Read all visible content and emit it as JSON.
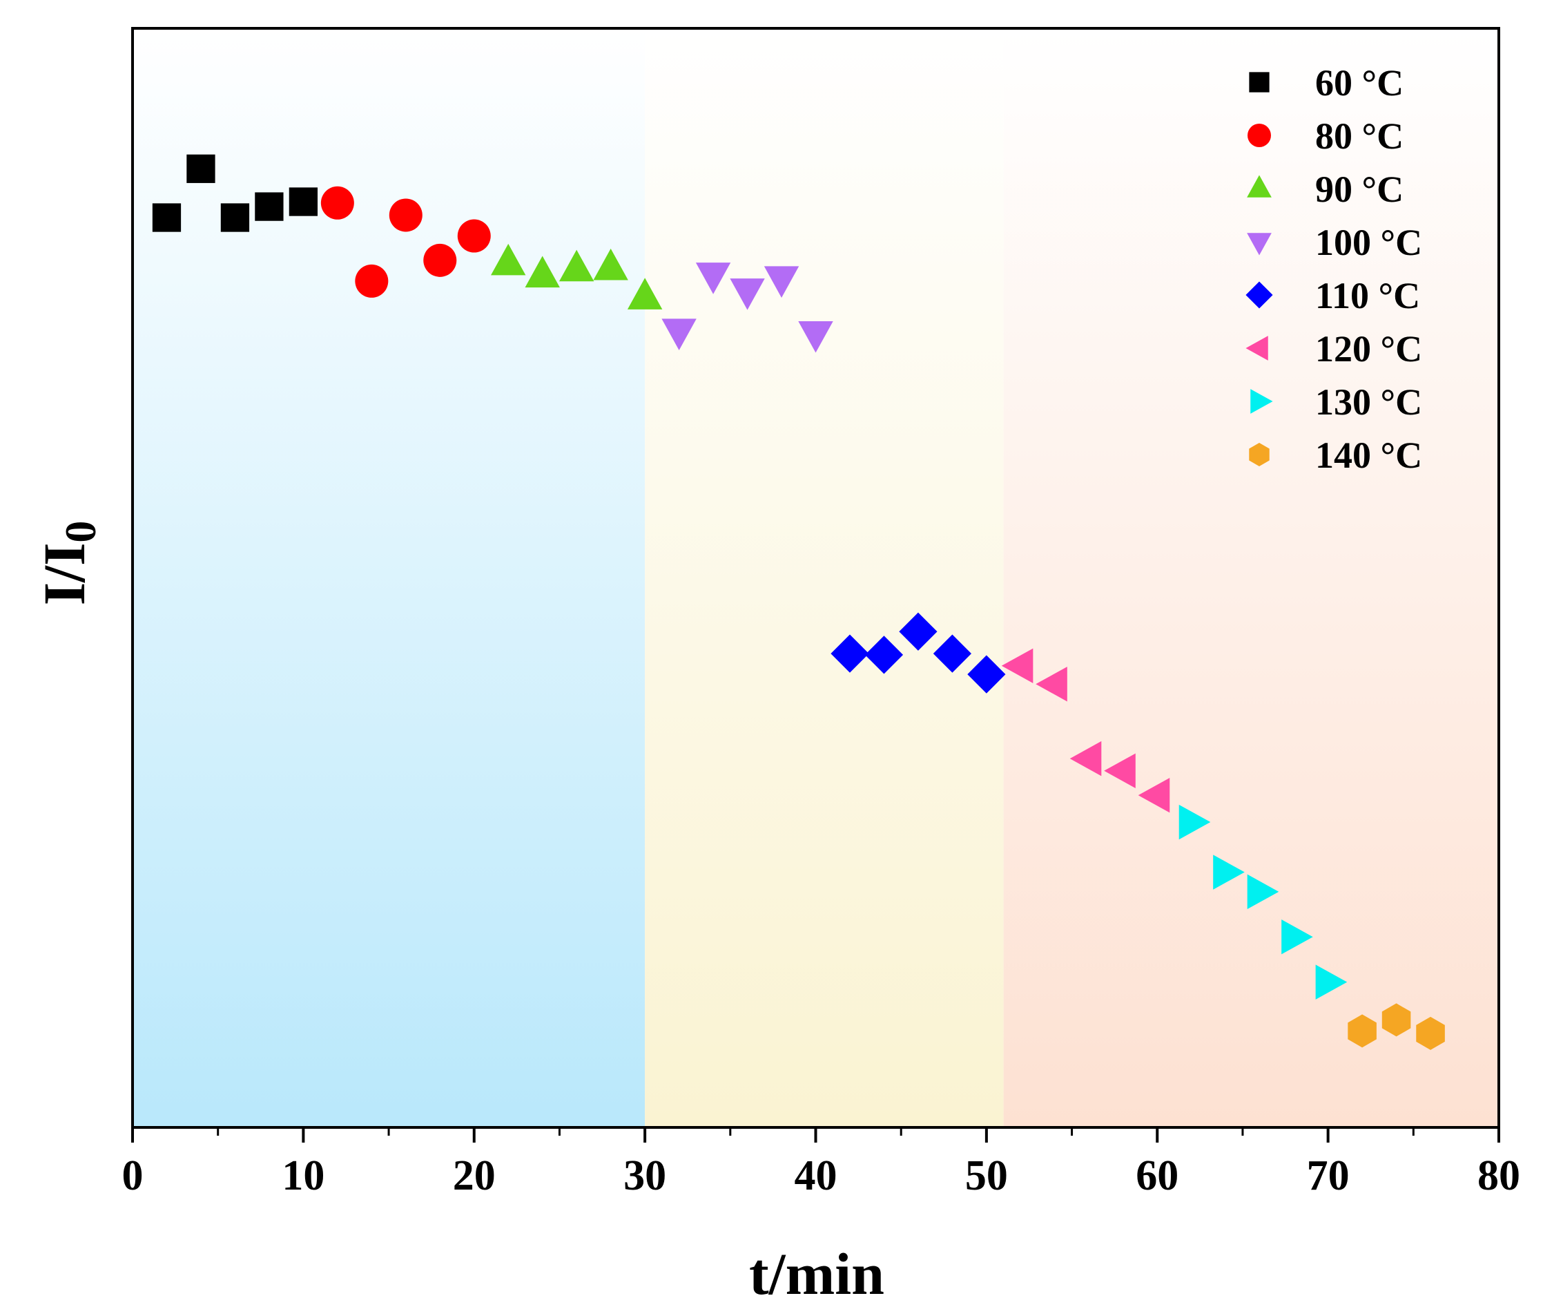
{
  "chart_data": {
    "type": "scatter",
    "title": "",
    "xlabel": "t/min",
    "ylabel": "I/I",
    "ylabel_subscript": "0",
    "xlim": [
      0,
      80
    ],
    "ylim": [
      0.18,
      1.08
    ],
    "xticks": [
      0,
      10,
      20,
      30,
      40,
      50,
      60,
      70,
      80
    ],
    "y_tick_labels_shown": false,
    "legend_position": "top-right",
    "background_bands": [
      {
        "name": "low",
        "x_range": [
          0,
          30
        ],
        "color_top": "#ffffff",
        "color_bottom": "#b9e8fb"
      },
      {
        "name": "mid",
        "x_range": [
          30,
          51
        ],
        "color_top": "#ffffff",
        "color_bottom": "#faf3d2"
      },
      {
        "name": "high",
        "x_range": [
          51,
          80
        ],
        "color_top": "#ffffff",
        "color_bottom": "#fde1d2"
      }
    ],
    "series": [
      {
        "name": "60 °C",
        "marker": "square",
        "color": "#000000",
        "x": [
          2,
          4,
          6,
          8,
          10
        ],
        "y": [
          0.925,
          0.965,
          0.925,
          0.934,
          0.938
        ]
      },
      {
        "name": "80 °C",
        "marker": "circle",
        "color": "#ff0000",
        "x": [
          12,
          14,
          16,
          18,
          20
        ],
        "y": [
          0.937,
          0.873,
          0.927,
          0.89,
          0.91
        ]
      },
      {
        "name": "90 °C",
        "marker": "triangle-up",
        "color": "#66d61a",
        "x": [
          22,
          24,
          26,
          28,
          30
        ],
        "y": [
          0.888,
          0.878,
          0.883,
          0.884,
          0.86
        ]
      },
      {
        "name": "100 °C",
        "marker": "triangle-down",
        "color": "#b36cf5",
        "x": [
          32,
          34,
          36,
          38,
          40
        ],
        "y": [
          0.832,
          0.878,
          0.865,
          0.875,
          0.83
        ]
      },
      {
        "name": "110 °C",
        "marker": "diamond",
        "color": "#0000ff",
        "x": [
          42,
          44,
          46,
          48,
          50
        ],
        "y": [
          0.568,
          0.567,
          0.586,
          0.568,
          0.551
        ]
      },
      {
        "name": "120 °C",
        "marker": "triangle-left",
        "color": "#ff4aa3",
        "x": [
          52,
          54,
          56,
          58,
          60
        ],
        "y": [
          0.558,
          0.543,
          0.482,
          0.472,
          0.452
        ]
      },
      {
        "name": "130 °C",
        "marker": "triangle-right",
        "color": "#00f0f0",
        "x": [
          62,
          64,
          66,
          68,
          70
        ],
        "y": [
          0.43,
          0.389,
          0.373,
          0.336,
          0.299
        ]
      },
      {
        "name": "140 °C",
        "marker": "hexagon",
        "color": "#f5a623",
        "x": [
          72,
          74,
          76
        ],
        "y": [
          0.259,
          0.268,
          0.257
        ]
      }
    ]
  }
}
